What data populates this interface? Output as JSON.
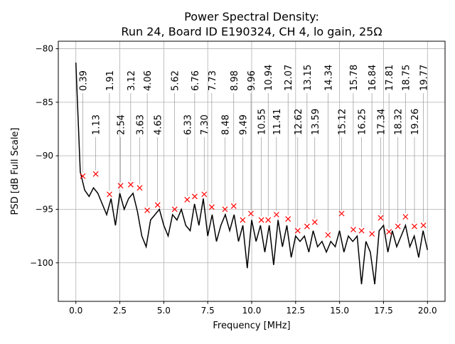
{
  "chart_data": {
    "type": "line",
    "title": [
      "Power Spectral Density:",
      "Run 24, Board ID E190324, CH 4, lo gain, 25Ω"
    ],
    "xlabel": "Frequency [MHz]",
    "ylabel": "PSD [dB Full Scale]",
    "xlim": [
      -1,
      21
    ],
    "ylim": [
      -103.6,
      -79.3
    ],
    "xticks": [
      0,
      2.5,
      5,
      7.5,
      10,
      12.5,
      15,
      17.5,
      20
    ],
    "xtick_labels": [
      "0.0",
      "2.5",
      "5.0",
      "7.5",
      "10.0",
      "12.5",
      "15.0",
      "17.5",
      "20.0"
    ],
    "yticks": [
      -80,
      -85,
      -90,
      -95,
      -100
    ],
    "ytick_labels": [
      "−80",
      "−85",
      "−90",
      "−95",
      "−100"
    ],
    "grid": true,
    "line_color": "#000000",
    "marker_color": "#ff0000",
    "series": [
      {
        "x": [
          0,
          0.25,
          0.5,
          0.75,
          1,
          1.25,
          1.5,
          1.75,
          2,
          2.25,
          2.5,
          2.75,
          3,
          3.25,
          3.5,
          3.75,
          4,
          4.25,
          4.5,
          4.75,
          5,
          5.25,
          5.5,
          5.75,
          6,
          6.25,
          6.5,
          6.75,
          7,
          7.25,
          7.5,
          7.75,
          8,
          8.25,
          8.5,
          8.75,
          9,
          9.25,
          9.5,
          9.75,
          10,
          10.25,
          10.5,
          10.75,
          11,
          11.25,
          11.5,
          11.75,
          12,
          12.25,
          12.5,
          12.75,
          13,
          13.25,
          13.5,
          13.75,
          14,
          14.25,
          14.5,
          14.75,
          15,
          15.25,
          15.5,
          15.75,
          16,
          16.25,
          16.5,
          16.75,
          17,
          17.25,
          17.5,
          17.75,
          18,
          18.25,
          18.5,
          18.75,
          19,
          19.25,
          19.5,
          19.75,
          20
        ],
        "y": [
          -81.3,
          -91.5,
          -93.2,
          -93.8,
          -93,
          -93.5,
          -94.5,
          -95.5,
          -94,
          -96.5,
          -93.5,
          -95,
          -94,
          -93.5,
          -95.2,
          -97.5,
          -98.5,
          -96,
          -95.5,
          -95,
          -96.5,
          -97.5,
          -95.5,
          -96,
          -95,
          -96.5,
          -97,
          -94.5,
          -96.5,
          -94,
          -97.5,
          -95.5,
          -98,
          -96.5,
          -95.5,
          -97,
          -95.5,
          -98,
          -96.5,
          -100.5,
          -96,
          -98,
          -96.5,
          -99,
          -96.5,
          -100.2,
          -96,
          -98.5,
          -96.5,
          -99.5,
          -97.5,
          -98,
          -97.5,
          -99,
          -97,
          -98.5,
          -98,
          -99,
          -98,
          -98.5,
          -97,
          -99,
          -97.5,
          -98,
          -97.5,
          -102,
          -98,
          -99,
          -102,
          -97,
          -96.5,
          -99,
          -97,
          -98.5,
          -97.5,
          -96.5,
          -98.5,
          -97.5,
          -99.5,
          -97,
          -98.8
        ]
      }
    ],
    "peaks": [
      {
        "label": "0.39",
        "x": 0.39,
        "y": -91.9
      },
      {
        "label": "1.13",
        "x": 1.13,
        "y": -91.7
      },
      {
        "label": "1.91",
        "x": 1.91,
        "y": -93.6
      },
      {
        "label": "2.54",
        "x": 2.54,
        "y": -92.8
      },
      {
        "label": "3.12",
        "x": 3.12,
        "y": -92.7
      },
      {
        "label": "3.63",
        "x": 3.63,
        "y": -93.0
      },
      {
        "label": "4.06",
        "x": 4.06,
        "y": -95.1
      },
      {
        "label": "4.65",
        "x": 4.65,
        "y": -94.6
      },
      {
        "label": "5.62",
        "x": 5.62,
        "y": -95.0
      },
      {
        "label": "6.33",
        "x": 6.33,
        "y": -94.1
      },
      {
        "label": "6.76",
        "x": 6.76,
        "y": -93.8
      },
      {
        "label": "7.30",
        "x": 7.3,
        "y": -93.6
      },
      {
        "label": "7.73",
        "x": 7.73,
        "y": -94.8
      },
      {
        "label": "8.48",
        "x": 8.48,
        "y": -95.0
      },
      {
        "label": "8.98",
        "x": 8.98,
        "y": -94.7
      },
      {
        "label": "9.49",
        "x": 9.49,
        "y": -96.0
      },
      {
        "label": "9.96",
        "x": 9.96,
        "y": -95.4
      },
      {
        "label": "10.55",
        "x": 10.55,
        "y": -96.0
      },
      {
        "label": "10.94",
        "x": 10.94,
        "y": -96.0
      },
      {
        "label": "11.41",
        "x": 11.41,
        "y": -95.5
      },
      {
        "label": "12.07",
        "x": 12.07,
        "y": -95.9
      },
      {
        "label": "12.62",
        "x": 12.62,
        "y": -97.0
      },
      {
        "label": "13.15",
        "x": 13.15,
        "y": -96.6
      },
      {
        "label": "13.59",
        "x": 13.59,
        "y": -96.2
      },
      {
        "label": "14.34",
        "x": 14.34,
        "y": -97.4
      },
      {
        "label": "15.12",
        "x": 15.12,
        "y": -95.4
      },
      {
        "label": "15.78",
        "x": 15.78,
        "y": -96.9
      },
      {
        "label": "16.25",
        "x": 16.25,
        "y": -97.0
      },
      {
        "label": "16.84",
        "x": 16.84,
        "y": -97.3
      },
      {
        "label": "17.34",
        "x": 17.34,
        "y": -95.8
      },
      {
        "label": "17.81",
        "x": 17.81,
        "y": -97.1
      },
      {
        "label": "18.32",
        "x": 18.32,
        "y": -96.6
      },
      {
        "label": "18.75",
        "x": 18.75,
        "y": -95.7
      },
      {
        "label": "19.26",
        "x": 19.26,
        "y": -96.6
      },
      {
        "label": "19.77",
        "x": 19.77,
        "y": -96.5
      }
    ]
  }
}
